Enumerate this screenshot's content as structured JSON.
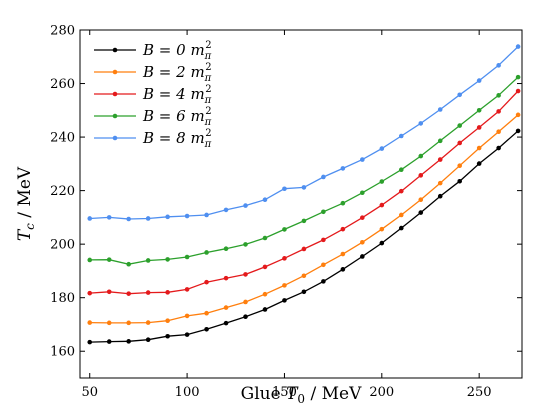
{
  "chart_data": {
    "type": "line",
    "xlabel": "Glue T0 / MeV",
    "ylabel": "Tc / MeV",
    "xlim": [
      45,
      272
    ],
    "ylim": [
      150,
      280
    ],
    "xticks": [
      50,
      100,
      150,
      200,
      250
    ],
    "yticks": [
      160,
      180,
      200,
      220,
      240,
      260,
      280
    ],
    "legend_position": "top-left",
    "x": [
      50,
      60,
      70,
      80,
      90,
      100,
      110,
      120,
      130,
      140,
      150,
      160,
      170,
      180,
      190,
      200,
      210,
      220,
      230,
      240,
      250,
      260,
      270
    ],
    "series": [
      {
        "name": "B = 0 m_π^2",
        "color": "#000000",
        "values": [
          163.4,
          163.6,
          163.7,
          164.3,
          165.6,
          166.2,
          168.2,
          170.5,
          172.9,
          175.6,
          179.0,
          182.2,
          186.1,
          190.6,
          195.4,
          200.4,
          206.0,
          211.8,
          217.9,
          223.5,
          230.1,
          235.9,
          242.3
        ]
      },
      {
        "name": "B = 2 m_π^2",
        "color": "#ff7f0e",
        "values": [
          170.7,
          170.6,
          170.6,
          170.7,
          171.4,
          173.2,
          174.2,
          176.3,
          178.4,
          181.3,
          184.6,
          188.2,
          192.3,
          196.3,
          200.7,
          205.6,
          210.9,
          216.6,
          222.8,
          229.3,
          235.9,
          242.0,
          248.3
        ]
      },
      {
        "name": "B = 4 m_π^2",
        "color": "#e41a1c",
        "values": [
          181.7,
          182.2,
          181.5,
          181.9,
          182.0,
          183.1,
          185.8,
          187.3,
          188.7,
          191.5,
          194.7,
          198.2,
          201.6,
          205.6,
          209.9,
          214.6,
          219.8,
          225.7,
          231.6,
          237.8,
          243.6,
          249.6,
          257.2
        ]
      },
      {
        "name": "B = 6 m_π^2",
        "color": "#2ca02c",
        "values": [
          194.1,
          194.2,
          192.5,
          193.9,
          194.3,
          195.2,
          196.9,
          198.3,
          199.9,
          202.3,
          205.5,
          208.7,
          212.1,
          215.3,
          219.2,
          223.4,
          227.8,
          232.9,
          238.6,
          244.3,
          250.0,
          255.6,
          262.4
        ]
      },
      {
        "name": "B = 8 m_π^2",
        "color": "#4f8ff0",
        "values": [
          209.6,
          210.0,
          209.4,
          209.6,
          210.2,
          210.5,
          210.9,
          212.8,
          214.4,
          216.6,
          220.7,
          221.2,
          225.1,
          228.3,
          231.6,
          235.7,
          240.4,
          245.1,
          250.3,
          255.8,
          261.1,
          266.8,
          273.8
        ]
      }
    ]
  }
}
